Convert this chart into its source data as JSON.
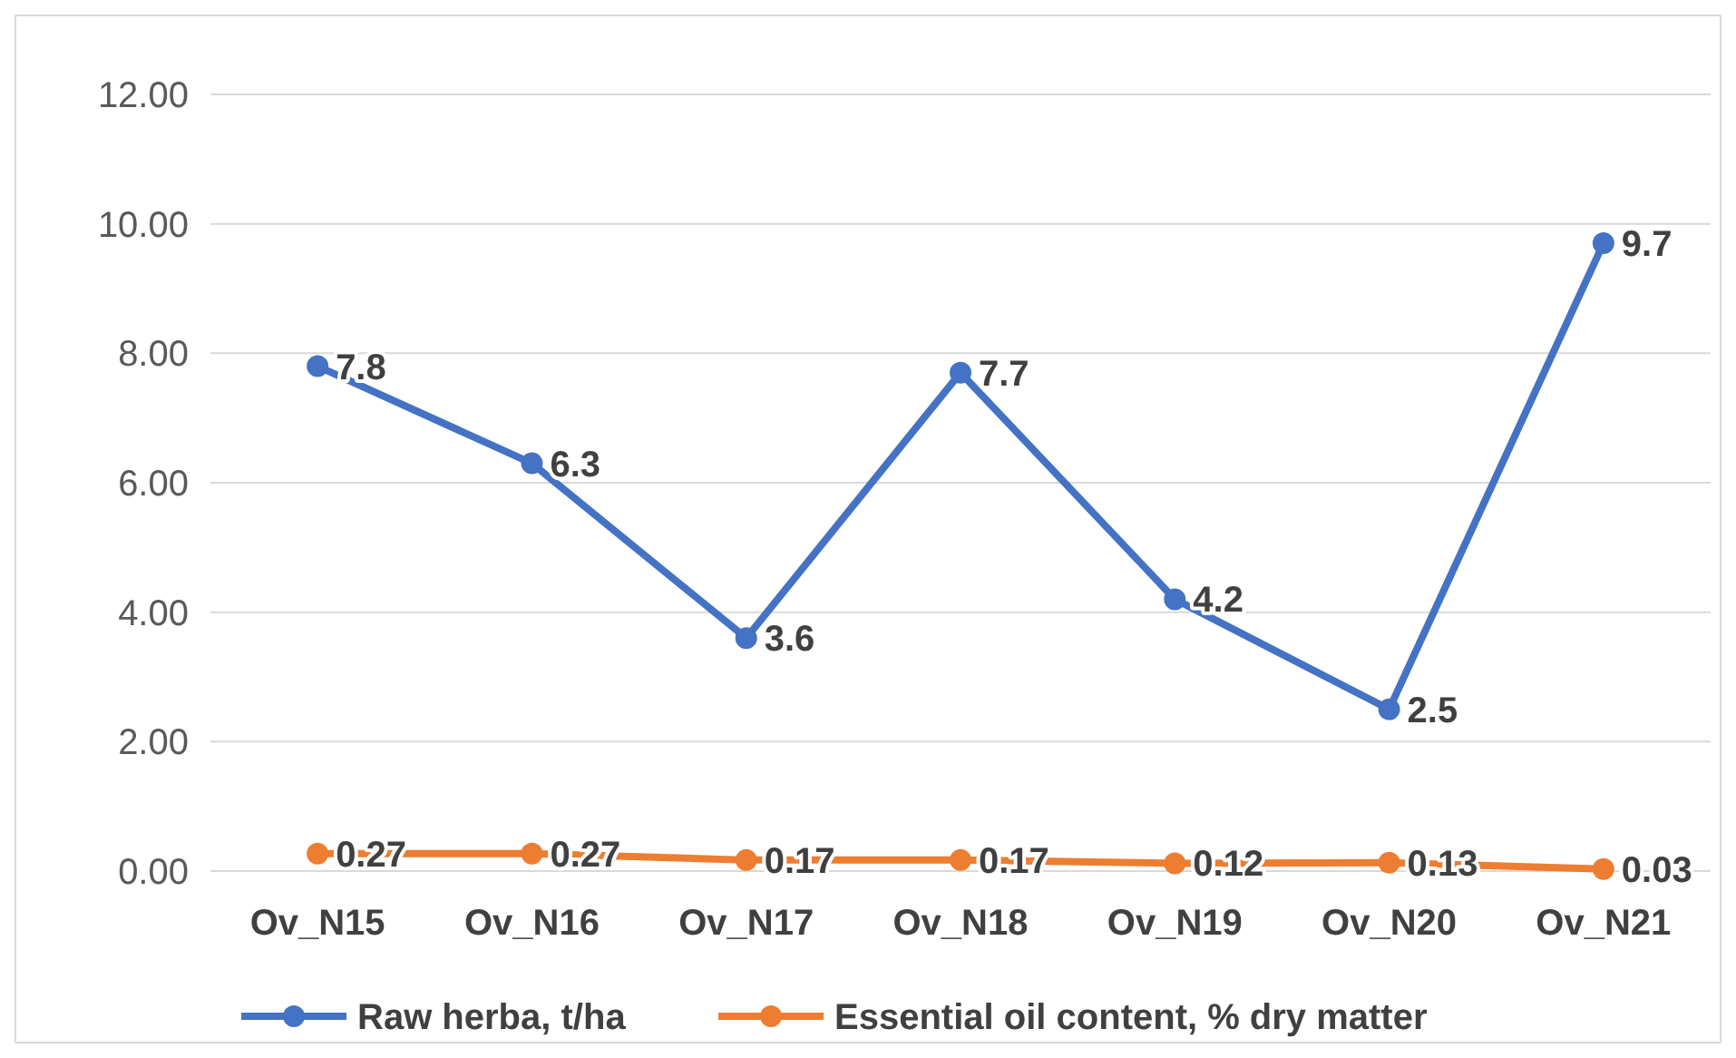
{
  "chart_data": {
    "type": "line",
    "categories": [
      "Ov_N15",
      "Ov_N16",
      "Ov_N17",
      "Ov_N18",
      "Ov_N19",
      "Ov_N20",
      "Ov_N21"
    ],
    "series": [
      {
        "name": "Raw herba, t/ha",
        "color": "#4472c4",
        "values": [
          7.8,
          6.3,
          3.6,
          7.7,
          4.2,
          2.5,
          9.7
        ]
      },
      {
        "name": "Essential oil content, % dry matter",
        "color": "#ed7d31",
        "values": [
          0.27,
          0.27,
          0.17,
          0.17,
          0.12,
          0.13,
          0.03
        ]
      }
    ],
    "ylim": [
      0,
      12
    ],
    "yticks": [
      {
        "value": 0,
        "label": "0.00"
      },
      {
        "value": 2,
        "label": "2.00"
      },
      {
        "value": 4,
        "label": "4.00"
      },
      {
        "value": 6,
        "label": "6.00"
      },
      {
        "value": 8,
        "label": "8.00"
      },
      {
        "value": 10,
        "label": "10.00"
      },
      {
        "value": 12,
        "label": "12.00"
      }
    ],
    "grid": "y",
    "legend": "bottom",
    "marker": "circle",
    "line_style": "solid",
    "data_labels": true
  }
}
